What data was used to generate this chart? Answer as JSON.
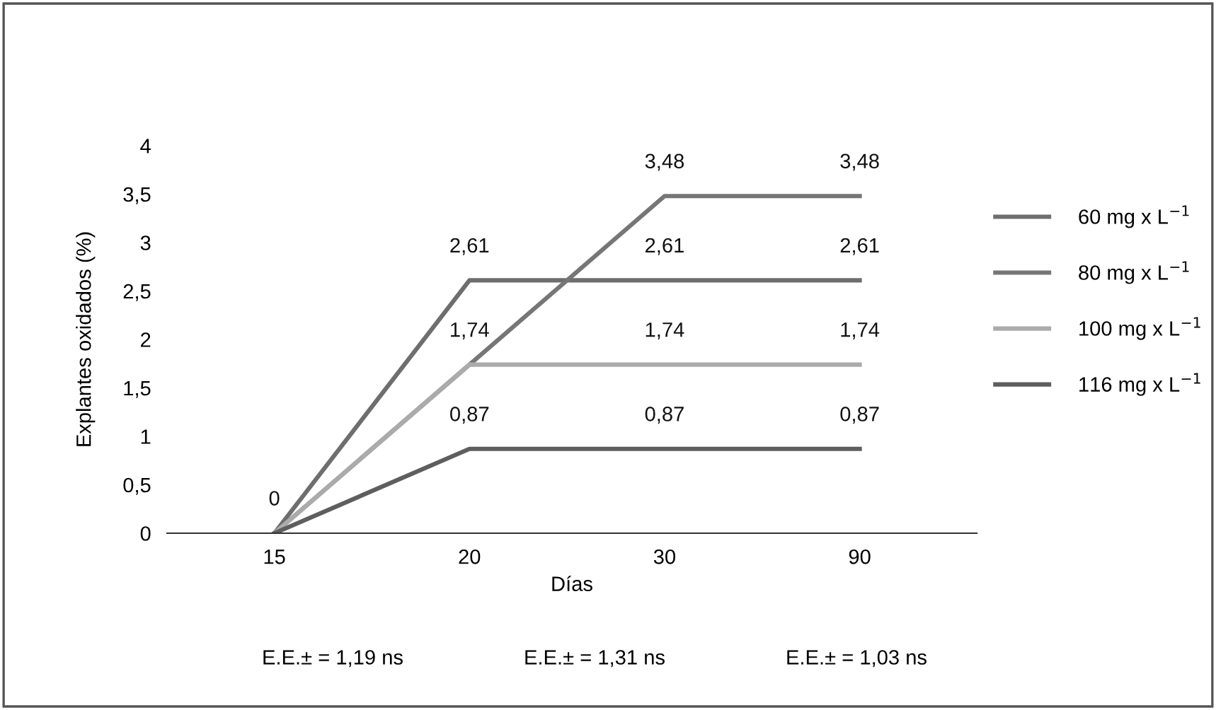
{
  "chart_data": {
    "type": "line",
    "xlabel": "Días",
    "ylabel": "Explantes oxidados (%)",
    "categories": [
      "15",
      "20",
      "30",
      "90"
    ],
    "series": [
      {
        "name": "60 mg x L$^{−1}$",
        "color": "#6e6e6e",
        "values": [
          0,
          2.61,
          2.61,
          2.61
        ],
        "value_labels": [
          null,
          "2,61",
          "2,61",
          "2,61"
        ]
      },
      {
        "name": "80 mg x L$^{−1}$",
        "color": "#767676",
        "values": [
          0,
          1.74,
          3.48,
          3.48
        ],
        "value_labels": [
          null,
          null,
          "3,48",
          "3,48"
        ]
      },
      {
        "name": "100 mg x L$^{−1}$",
        "color": "#ababab",
        "values": [
          0,
          1.74,
          1.74,
          1.74
        ],
        "value_labels": [
          null,
          "1,74",
          "1,74",
          "1,74"
        ]
      },
      {
        "name": "116 mg x L$^{−1}$",
        "color": "#5e5e5e",
        "values": [
          0,
          0.87,
          0.87,
          0.87
        ],
        "value_labels": [
          "0",
          "0,87",
          "0,87",
          "0,87"
        ]
      }
    ],
    "ylim": [
      0,
      4
    ],
    "yticks": [
      0,
      {
        "value": 0.5,
        "label": "0,5"
      },
      1,
      {
        "value": 1.5,
        "label": "1,5"
      },
      2,
      {
        "value": 2.5,
        "label": "2,5"
      },
      3,
      {
        "value": 3.5,
        "label": "3,5"
      },
      4
    ],
    "grid": false,
    "legend": "right",
    "marker": "none",
    "line_style": "solid",
    "annotations": [
      "E.E.± = 1,19 ns",
      "E.E.± = 1,31 ns",
      "E.E.± = 1,03 ns"
    ]
  }
}
